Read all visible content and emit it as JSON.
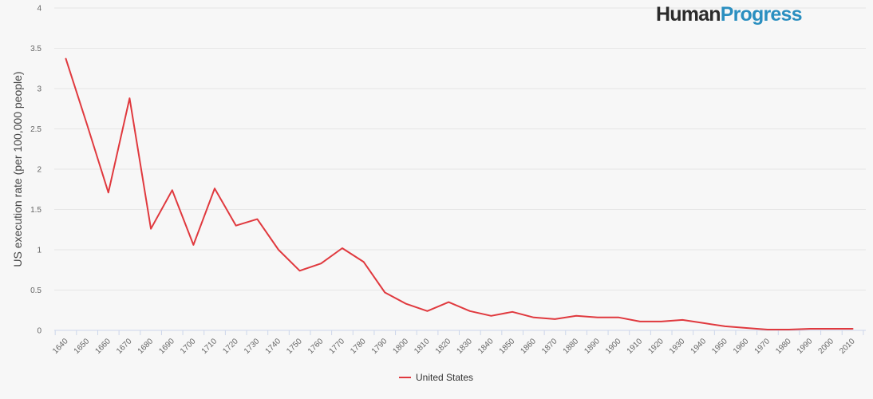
{
  "logo": {
    "part1": "Human",
    "part2": "Progress"
  },
  "chart_data": {
    "type": "line",
    "title": "",
    "xlabel": "",
    "ylabel": "US execution rate (per 100,000 people)",
    "x": [
      "1640",
      "1650",
      "1660",
      "1670",
      "1680",
      "1690",
      "1700",
      "1710",
      "1720",
      "1730",
      "1740",
      "1750",
      "1760",
      "1770",
      "1780",
      "1790",
      "1800",
      "1810",
      "1820",
      "1830",
      "1840",
      "1850",
      "1860",
      "1870",
      "1880",
      "1890",
      "1900",
      "1910",
      "1920",
      "1930",
      "1940",
      "1950",
      "1960",
      "1970",
      "1980",
      "1990",
      "2000",
      "2010"
    ],
    "series": [
      {
        "name": "United States",
        "color": "#e0393e",
        "values": [
          3.37,
          2.55,
          1.71,
          2.88,
          1.26,
          1.74,
          1.06,
          1.76,
          1.3,
          1.38,
          1.0,
          0.74,
          0.83,
          1.02,
          0.85,
          0.47,
          0.33,
          0.24,
          0.35,
          0.24,
          0.18,
          0.23,
          0.16,
          0.14,
          0.18,
          0.16,
          0.16,
          0.11,
          0.11,
          0.13,
          0.09,
          0.05,
          0.03,
          0.01,
          0.01,
          0.02,
          0.02,
          0.02
        ]
      }
    ],
    "ylim": [
      0,
      4
    ],
    "yticks": [
      "0",
      "0.5",
      "1",
      "1.5",
      "2",
      "2.5",
      "3",
      "3.5",
      "4"
    ],
    "grid": true,
    "legend_position": "bottom-center"
  }
}
